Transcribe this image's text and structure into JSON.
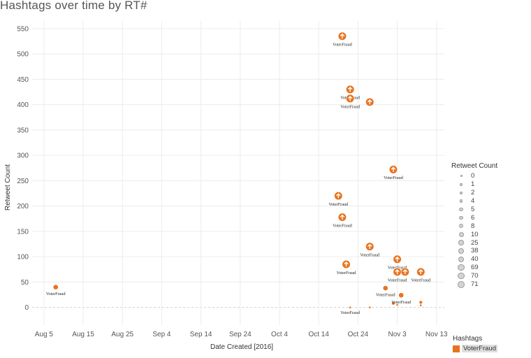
{
  "title": "Hashtags over time by RT#",
  "colors": {
    "accent": "#e8731f",
    "grid": "#ececec",
    "axis_text": "#555555"
  },
  "chart_data": {
    "type": "scatter",
    "xlabel": "Date Created [2016]",
    "ylabel": "Retweet Count",
    "xlim": [
      "2016-08-02",
      "2016-11-15"
    ],
    "ylim": [
      -35,
      565
    ],
    "x_ticks": [
      "2016-08-05",
      "2016-08-15",
      "2016-08-25",
      "2016-09-04",
      "2016-09-14",
      "2016-09-24",
      "2016-10-04",
      "2016-10-14",
      "2016-10-24",
      "2016-11-03",
      "2016-11-13"
    ],
    "x_tick_labels": [
      "Aug 5",
      "Aug 15",
      "Aug 25",
      "Sep 4",
      "Sep 14",
      "Sep 24",
      "Oct 4",
      "Oct 14",
      "Oct 24",
      "Nov 3",
      "Nov 13"
    ],
    "y_ticks": [
      0,
      50,
      100,
      150,
      200,
      250,
      300,
      350,
      400,
      450,
      500,
      550
    ],
    "grid": true,
    "series": [
      {
        "name": "VoterFraud",
        "color": "#e8731f",
        "points": [
          {
            "x": "2016-08-08",
            "y": 40,
            "label": "VoterFraud"
          },
          {
            "x": "2016-10-19",
            "y": 220,
            "label": "VoterFraud"
          },
          {
            "x": "2016-10-20",
            "y": 535,
            "label": "VoterFraud"
          },
          {
            "x": "2016-10-20",
            "y": 178,
            "label": "VoterFraud"
          },
          {
            "x": "2016-10-21",
            "y": 85,
            "label": "VoterFraud"
          },
          {
            "x": "2016-10-22",
            "y": 430,
            "label": "VoterFraud"
          },
          {
            "x": "2016-10-22",
            "y": 412,
            "label": "VoterFraud"
          },
          {
            "x": "2016-10-22",
            "y": 0,
            "label": "VoterFraud"
          },
          {
            "x": "2016-10-27",
            "y": 405,
            "label": ""
          },
          {
            "x": "2016-10-27",
            "y": 120,
            "label": "VoterFraud"
          },
          {
            "x": "2016-10-27",
            "y": 0,
            "label": ""
          },
          {
            "x": "2016-10-31",
            "y": 38,
            "label": "VoterFraud"
          },
          {
            "x": "2016-11-02",
            "y": 272,
            "label": "VoterFraud"
          },
          {
            "x": "2016-11-02",
            "y": 8,
            "label": ""
          },
          {
            "x": "2016-11-03",
            "y": 95,
            "label": "VoterFraud"
          },
          {
            "x": "2016-11-03",
            "y": 70,
            "label": "VoterFraud"
          },
          {
            "x": "2016-11-03",
            "y": 5,
            "label": ""
          },
          {
            "x": "2016-11-04",
            "y": 24,
            "label": "VoterFraud"
          },
          {
            "x": "2016-11-05",
            "y": 70,
            "label": ""
          },
          {
            "x": "2016-11-09",
            "y": 70,
            "label": "VoterFraud"
          },
          {
            "x": "2016-11-09",
            "y": 10,
            "label": ""
          },
          {
            "x": "2016-11-09",
            "y": 4,
            "label": ""
          }
        ]
      }
    ]
  },
  "legend": {
    "size_title": "Retweet Count",
    "size_items": [
      "0",
      "1",
      "2",
      "4",
      "5",
      "6",
      "8",
      "10",
      "25",
      "38",
      "40",
      "69",
      "70",
      "71"
    ],
    "color_title": "Hashtags",
    "color_items": [
      {
        "label": "VoterFraud",
        "color": "#e8731f"
      }
    ]
  }
}
